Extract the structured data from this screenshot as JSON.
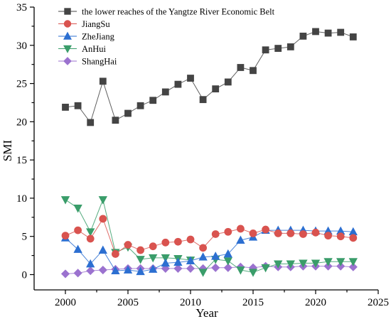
{
  "chart_data": {
    "type": "line",
    "xlabel": "Year",
    "ylabel": "SMI",
    "xlim": [
      1997.5,
      2025
    ],
    "ylim": [
      -2,
      35
    ],
    "xticks": [
      2000,
      2005,
      2010,
      2015,
      2020,
      2025
    ],
    "yticks": [
      0,
      5,
      10,
      15,
      20,
      25,
      30,
      35
    ],
    "grid": false,
    "legend_position": "top-left",
    "x": [
      2000,
      2001,
      2002,
      2003,
      2004,
      2005,
      2006,
      2007,
      2008,
      2009,
      2010,
      2011,
      2012,
      2013,
      2014,
      2015,
      2016,
      2017,
      2018,
      2019,
      2020,
      2021,
      2022,
      2023
    ],
    "series": [
      {
        "name": "the lower reaches of the Yangtze River Economic Belt",
        "color": "#444444",
        "marker": "square",
        "values": [
          21.9,
          22.1,
          19.9,
          25.3,
          20.2,
          21.1,
          22.1,
          22.8,
          23.9,
          24.9,
          25.7,
          22.9,
          24.3,
          25.2,
          27.1,
          26.7,
          29.4,
          29.6,
          29.8,
          31.2,
          31.8,
          31.6,
          31.7,
          31.1
        ]
      },
      {
        "name": "JiangSu",
        "color": "#d9534f",
        "marker": "circle",
        "values": [
          5.1,
          5.8,
          4.7,
          7.3,
          2.7,
          3.9,
          3.2,
          3.7,
          4.2,
          4.3,
          4.6,
          3.5,
          5.3,
          5.6,
          6.0,
          5.4,
          5.9,
          5.4,
          5.4,
          5.3,
          5.5,
          5.1,
          5.0,
          4.8
        ]
      },
      {
        "name": "ZheJiang",
        "color": "#2c6fd1",
        "marker": "triangle-up",
        "values": [
          4.8,
          3.3,
          1.4,
          3.2,
          0.5,
          0.6,
          0.4,
          0.7,
          1.5,
          1.6,
          1.8,
          2.3,
          2.4,
          2.7,
          4.5,
          4.9,
          5.8,
          5.8,
          5.8,
          5.8,
          5.7,
          5.7,
          5.7,
          5.6
        ]
      },
      {
        "name": "AnHui",
        "color": "#3a9d6a",
        "marker": "triangle-down",
        "values": [
          9.8,
          8.7,
          5.6,
          9.8,
          2.9,
          3.6,
          2.0,
          2.2,
          2.2,
          2.1,
          1.9,
          0.3,
          2.0,
          1.8,
          0.6,
          0.3,
          0.9,
          1.4,
          1.4,
          1.5,
          1.5,
          1.7,
          1.7,
          1.7
        ]
      },
      {
        "name": "ShangHai",
        "color": "#9b72cf",
        "marker": "diamond",
        "values": [
          0.1,
          0.2,
          0.5,
          0.6,
          0.7,
          0.8,
          0.8,
          0.8,
          0.8,
          0.8,
          0.8,
          0.8,
          0.9,
          0.9,
          1.0,
          0.9,
          1.1,
          1.0,
          1.0,
          1.1,
          1.1,
          1.1,
          1.1,
          1.0
        ]
      }
    ]
  }
}
